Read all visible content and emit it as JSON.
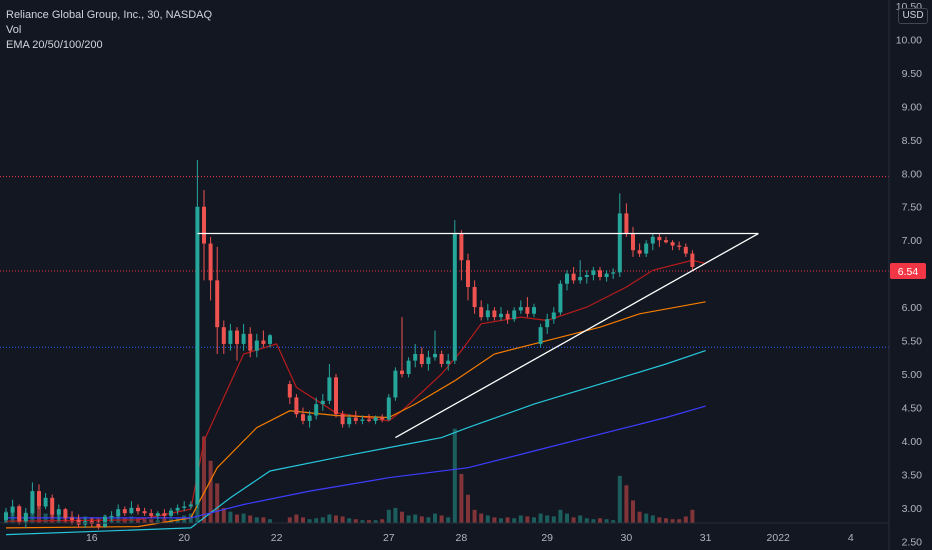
{
  "header": {
    "symbol_line": "Reliance Global Group, Inc., 30, NASDAQ",
    "volume_label": "Vol",
    "ema_label": "EMA 20/50/100/200"
  },
  "currency": "USD",
  "colors": {
    "background": "#131722",
    "up": "#26a69a",
    "down": "#ef5350",
    "ema20": "#b71c1c",
    "ema50": "#f57c00",
    "ema100": "#26c6da",
    "ema200": "#3d3dff",
    "trendline": "#ffffff",
    "red_level": "#f23645",
    "blue_level": "#2962ff"
  },
  "chart_data": {
    "type": "candlestick",
    "ylim": [
      2.4,
      10.5
    ],
    "yticks": [
      "10.50",
      "10.00",
      "9.50",
      "9.00",
      "8.50",
      "8.00",
      "7.50",
      "7.00",
      "6.50",
      "6.00",
      "5.50",
      "5.00",
      "4.50",
      "4.00",
      "3.50",
      "3.00",
      "2.50"
    ],
    "xticks": [
      {
        "label": "16",
        "i": 13
      },
      {
        "label": "20",
        "i": 27
      },
      {
        "label": "22",
        "i": 41
      },
      {
        "label": "27",
        "i": 58
      },
      {
        "label": "28",
        "i": 69
      },
      {
        "label": "29",
        "i": 82
      },
      {
        "label": "30",
        "i": 94
      },
      {
        "label": "31",
        "i": 106
      },
      {
        "label": "2022",
        "i": 117
      },
      {
        "label": "4",
        "i": 128
      }
    ],
    "last_price": "6.54",
    "horizontal_levels": [
      {
        "price": 7.95,
        "color": "red"
      },
      {
        "price": 6.54,
        "color": "red"
      },
      {
        "price": 5.4,
        "color": "blue"
      }
    ],
    "trendlines": [
      {
        "from": [
          29,
          7.1
        ],
        "to": [
          114,
          7.1
        ]
      },
      {
        "from": [
          59,
          4.05
        ],
        "to": [
          114,
          7.1
        ]
      }
    ],
    "candles": [
      [
        2.82,
        3.0,
        2.78,
        2.93,
        60000
      ],
      [
        2.93,
        3.12,
        2.88,
        3.02,
        75000
      ],
      [
        3.02,
        3.05,
        2.75,
        2.8,
        90000
      ],
      [
        2.8,
        3.0,
        2.7,
        2.92,
        55000
      ],
      [
        2.92,
        3.38,
        2.9,
        3.25,
        140000
      ],
      [
        3.25,
        3.35,
        2.98,
        3.02,
        85000
      ],
      [
        3.02,
        3.22,
        2.98,
        3.15,
        50000
      ],
      [
        3.15,
        3.2,
        2.85,
        2.9,
        70000
      ],
      [
        2.9,
        3.05,
        2.8,
        2.98,
        45000
      ],
      [
        2.98,
        3.0,
        2.8,
        2.85,
        40000
      ],
      [
        2.85,
        2.95,
        2.75,
        2.82,
        35000
      ],
      [
        2.82,
        2.9,
        2.7,
        2.75,
        30000
      ],
      [
        2.75,
        2.85,
        2.7,
        2.8,
        35000
      ],
      [
        2.8,
        2.85,
        2.72,
        2.76,
        30000
      ],
      [
        2.76,
        2.82,
        2.68,
        2.72,
        25000
      ],
      [
        2.72,
        2.9,
        2.7,
        2.86,
        40000
      ],
      [
        2.86,
        2.95,
        2.8,
        2.88,
        30000
      ],
      [
        2.88,
        3.05,
        2.85,
        2.98,
        45000
      ],
      [
        2.98,
        3.02,
        2.88,
        2.92,
        30000
      ],
      [
        2.92,
        3.1,
        2.9,
        3.0,
        35000
      ],
      [
        3.0,
        3.05,
        2.9,
        2.95,
        25000
      ],
      [
        2.95,
        3.0,
        2.88,
        2.92,
        20000
      ],
      [
        2.92,
        2.98,
        2.85,
        2.88,
        20000
      ],
      [
        2.88,
        2.95,
        2.82,
        2.92,
        15000
      ],
      [
        2.92,
        2.98,
        2.85,
        2.88,
        25000
      ],
      [
        2.88,
        3.0,
        2.85,
        2.96,
        20000
      ],
      [
        2.96,
        3.05,
        2.9,
        3.0,
        30000
      ],
      [
        3.0,
        3.1,
        2.95,
        3.02,
        40000
      ],
      [
        3.02,
        3.1,
        2.98,
        3.05,
        50000
      ],
      [
        3.05,
        8.2,
        3.0,
        7.5,
        700000
      ],
      [
        7.5,
        7.75,
        6.4,
        6.95,
        460000
      ],
      [
        6.95,
        7.05,
        6.1,
        6.4,
        330000
      ],
      [
        6.4,
        6.9,
        5.3,
        5.7,
        210000
      ],
      [
        5.7,
        5.8,
        5.3,
        5.45,
        80000
      ],
      [
        5.45,
        5.75,
        5.35,
        5.65,
        60000
      ],
      [
        5.65,
        5.7,
        5.2,
        5.45,
        45000
      ],
      [
        5.45,
        5.75,
        5.35,
        5.6,
        50000
      ],
      [
        5.6,
        5.7,
        5.25,
        5.35,
        40000
      ],
      [
        5.35,
        5.6,
        5.25,
        5.5,
        30000
      ],
      [
        5.5,
        5.65,
        5.4,
        5.45,
        30000
      ],
      [
        5.45,
        5.6,
        5.4,
        5.58,
        20000
      ],
      null,
      null,
      [
        4.85,
        4.9,
        4.55,
        4.65,
        30000
      ],
      [
        4.65,
        4.7,
        4.35,
        4.4,
        45000
      ],
      [
        4.4,
        4.5,
        4.25,
        4.3,
        30000
      ],
      [
        4.3,
        4.45,
        4.2,
        4.38,
        20000
      ],
      [
        4.38,
        4.65,
        4.32,
        4.55,
        25000
      ],
      [
        4.55,
        4.7,
        4.45,
        4.6,
        30000
      ],
      [
        4.6,
        5.15,
        4.55,
        4.95,
        45000
      ],
      [
        4.95,
        5.0,
        4.35,
        4.4,
        40000
      ],
      [
        4.4,
        4.45,
        4.2,
        4.25,
        35000
      ],
      [
        4.25,
        4.4,
        4.2,
        4.35,
        25000
      ],
      [
        4.35,
        4.45,
        4.25,
        4.3,
        20000
      ],
      [
        4.3,
        4.38,
        4.25,
        4.32,
        15000
      ],
      [
        4.32,
        4.4,
        4.28,
        4.3,
        15000
      ],
      [
        4.3,
        4.38,
        4.25,
        4.35,
        15000
      ],
      [
        4.35,
        4.4,
        4.28,
        4.32,
        20000
      ],
      [
        4.32,
        4.7,
        4.3,
        4.65,
        70000
      ],
      [
        4.65,
        5.1,
        4.6,
        5.05,
        80000
      ],
      [
        5.05,
        5.85,
        4.95,
        5.0,
        60000
      ],
      [
        5.0,
        5.25,
        4.95,
        5.2,
        40000
      ],
      [
        5.2,
        5.45,
        5.1,
        5.3,
        45000
      ],
      [
        5.3,
        5.4,
        5.1,
        5.15,
        35000
      ],
      [
        5.15,
        5.35,
        5.05,
        5.25,
        30000
      ],
      [
        5.25,
        5.65,
        5.2,
        5.3,
        50000
      ],
      [
        5.3,
        5.35,
        5.1,
        5.15,
        40000
      ],
      [
        5.15,
        5.3,
        5.05,
        5.2,
        30000
      ],
      [
        5.2,
        7.3,
        5.15,
        7.1,
        500000
      ],
      [
        7.1,
        7.15,
        6.4,
        6.7,
        260000
      ],
      [
        6.7,
        6.8,
        6.1,
        6.3,
        150000
      ],
      [
        6.3,
        6.4,
        5.9,
        6.0,
        70000
      ],
      [
        6.0,
        6.1,
        5.8,
        5.85,
        50000
      ],
      [
        5.85,
        6.05,
        5.8,
        5.95,
        40000
      ],
      [
        5.95,
        6.0,
        5.8,
        5.85,
        30000
      ],
      [
        5.85,
        6.0,
        5.8,
        5.9,
        25000
      ],
      [
        5.9,
        5.95,
        5.75,
        5.82,
        30000
      ],
      [
        5.82,
        6.0,
        5.78,
        5.95,
        25000
      ],
      [
        5.95,
        6.1,
        5.9,
        6.0,
        40000
      ],
      [
        6.0,
        6.15,
        5.85,
        5.9,
        35000
      ],
      [
        5.9,
        6.05,
        5.85,
        6.0,
        30000
      ],
      [
        5.45,
        5.75,
        5.4,
        5.7,
        50000
      ],
      [
        5.7,
        5.9,
        5.6,
        5.82,
        40000
      ],
      [
        5.82,
        6.0,
        5.75,
        5.92,
        35000
      ],
      [
        5.92,
        6.4,
        5.88,
        6.35,
        70000
      ],
      [
        6.35,
        6.55,
        6.25,
        6.5,
        50000
      ],
      [
        6.5,
        6.6,
        6.35,
        6.4,
        30000
      ],
      [
        6.4,
        6.7,
        6.35,
        6.45,
        40000
      ],
      [
        6.45,
        6.55,
        6.35,
        6.48,
        25000
      ],
      [
        6.48,
        6.6,
        6.4,
        6.55,
        20000
      ],
      [
        6.55,
        6.6,
        6.4,
        6.45,
        25000
      ],
      [
        6.45,
        6.55,
        6.38,
        6.5,
        20000
      ],
      [
        6.5,
        6.58,
        6.42,
        6.52,
        15000
      ],
      [
        6.52,
        7.7,
        6.45,
        7.4,
        250000
      ],
      [
        7.4,
        7.55,
        7.05,
        7.1,
        200000
      ],
      [
        7.1,
        7.2,
        6.75,
        6.85,
        120000
      ],
      [
        6.85,
        6.95,
        6.75,
        6.8,
        60000
      ],
      [
        6.8,
        7.0,
        6.75,
        6.95,
        50000
      ],
      [
        6.95,
        7.1,
        6.85,
        7.05,
        40000
      ],
      [
        7.05,
        7.1,
        6.9,
        7.0,
        30000
      ],
      [
        7.0,
        7.05,
        6.95,
        6.97,
        25000
      ],
      [
        6.97,
        7.0,
        6.85,
        6.92,
        20000
      ],
      [
        6.92,
        6.98,
        6.85,
        6.9,
        20000
      ],
      [
        6.9,
        6.95,
        6.75,
        6.8,
        35000
      ],
      [
        6.8,
        6.85,
        6.55,
        6.6,
        70000
      ]
    ],
    "ema": {
      "ema20": [
        [
          0,
          2.8
        ],
        [
          20,
          2.82
        ],
        [
          28,
          2.98
        ],
        [
          30,
          4.0
        ],
        [
          36,
          5.3
        ],
        [
          41,
          5.45
        ],
        [
          44,
          4.8
        ],
        [
          50,
          4.42
        ],
        [
          58,
          4.3
        ],
        [
          60,
          4.45
        ],
        [
          66,
          5.0
        ],
        [
          69,
          5.35
        ],
        [
          72,
          5.75
        ],
        [
          78,
          5.85
        ],
        [
          82,
          5.8
        ],
        [
          88,
          6.0
        ],
        [
          94,
          6.3
        ],
        [
          98,
          6.55
        ],
        [
          104,
          6.7
        ],
        [
          106,
          6.65
        ]
      ],
      "ema50": [
        [
          0,
          2.7
        ],
        [
          20,
          2.72
        ],
        [
          28,
          2.85
        ],
        [
          32,
          3.6
        ],
        [
          38,
          4.2
        ],
        [
          43,
          4.45
        ],
        [
          50,
          4.38
        ],
        [
          58,
          4.35
        ],
        [
          62,
          4.55
        ],
        [
          68,
          4.9
        ],
        [
          74,
          5.3
        ],
        [
          82,
          5.5
        ],
        [
          90,
          5.7
        ],
        [
          96,
          5.9
        ],
        [
          106,
          6.08
        ]
      ],
      "ema100": [
        [
          0,
          2.6
        ],
        [
          28,
          2.7
        ],
        [
          34,
          3.15
        ],
        [
          40,
          3.55
        ],
        [
          50,
          3.75
        ],
        [
          58,
          3.9
        ],
        [
          66,
          4.05
        ],
        [
          70,
          4.2
        ],
        [
          80,
          4.55
        ],
        [
          90,
          4.85
        ],
        [
          100,
          5.15
        ],
        [
          106,
          5.35
        ]
      ],
      "ema200": [
        [
          0,
          2.85
        ],
        [
          20,
          2.85
        ],
        [
          28,
          2.85
        ],
        [
          36,
          3.05
        ],
        [
          46,
          3.25
        ],
        [
          58,
          3.45
        ],
        [
          70,
          3.6
        ],
        [
          80,
          3.85
        ],
        [
          90,
          4.1
        ],
        [
          100,
          4.35
        ],
        [
          106,
          4.52
        ]
      ]
    }
  }
}
